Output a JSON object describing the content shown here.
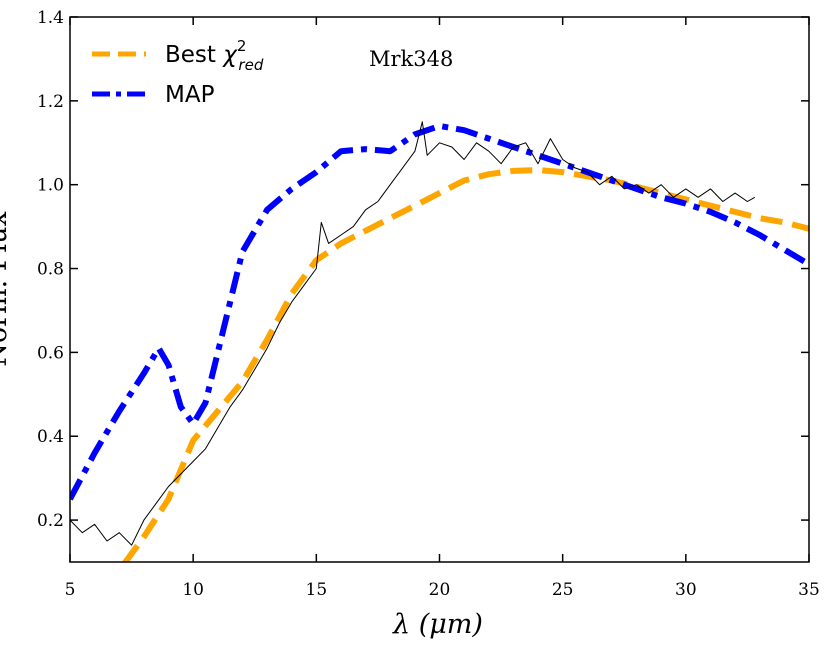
{
  "chart_data": {
    "type": "line",
    "title": "",
    "annotation": "Mrk348",
    "xlabel": "λ (μm)",
    "ylabel": "Norm. Flux",
    "xlim": [
      5,
      35
    ],
    "ylim": [
      0.1,
      1.4
    ],
    "xticks": [
      5,
      10,
      15,
      20,
      25,
      30,
      35
    ],
    "yticks": [
      0.2,
      0.4,
      0.6,
      0.8,
      1.0,
      1.2,
      1.4
    ],
    "legend_position": "top-left",
    "legend": [
      {
        "label": "Best χ²_red",
        "text_main": "Best ",
        "chi": "χ",
        "sup": "2",
        "sub": "red",
        "color": "#FFA500",
        "style": "dashed"
      },
      {
        "label": "MAP",
        "text_main": "MAP",
        "color": "#0000FF",
        "style": "dashdot"
      }
    ],
    "series": [
      {
        "name": "Best χ²_red",
        "color": "#FFA500",
        "style": "dashed",
        "x": [
          5.0,
          6.0,
          7.0,
          8.0,
          9.0,
          10.0,
          11.0,
          12.0,
          13.0,
          14.0,
          15.0,
          16.0,
          17.0,
          18.0,
          19.0,
          20.0,
          21.0,
          22.0,
          23.0,
          24.0,
          25.0,
          26.0,
          27.0,
          28.0,
          29.0,
          30.0,
          31.0,
          32.0,
          33.0,
          34.0,
          35.0
        ],
        "y": [
          0.02,
          0.05,
          0.08,
          0.16,
          0.25,
          0.39,
          0.46,
          0.53,
          0.63,
          0.74,
          0.82,
          0.86,
          0.89,
          0.92,
          0.95,
          0.98,
          1.01,
          1.025,
          1.033,
          1.035,
          1.03,
          1.02,
          1.01,
          0.995,
          0.98,
          0.965,
          0.95,
          0.935,
          0.92,
          0.91,
          0.895
        ]
      },
      {
        "name": "MAP",
        "color": "#0000FF",
        "style": "dashdot",
        "x": [
          5.0,
          6.0,
          7.0,
          8.0,
          8.6,
          9.0,
          9.5,
          10.0,
          10.5,
          11.0,
          11.5,
          12.0,
          13.0,
          14.0,
          15.0,
          16.0,
          17.0,
          18.0,
          19.0,
          20.0,
          21.0,
          22.0,
          23.0,
          24.0,
          25.0,
          26.0,
          27.0,
          28.0,
          29.0,
          30.0,
          31.0,
          32.0,
          33.0,
          34.0,
          35.0
        ],
        "y": [
          0.25,
          0.36,
          0.46,
          0.55,
          0.61,
          0.57,
          0.47,
          0.43,
          0.48,
          0.6,
          0.72,
          0.84,
          0.94,
          0.99,
          1.03,
          1.08,
          1.085,
          1.08,
          1.12,
          1.14,
          1.13,
          1.11,
          1.09,
          1.07,
          1.05,
          1.03,
          1.01,
          0.99,
          0.97,
          0.955,
          0.935,
          0.91,
          0.88,
          0.845,
          0.81
        ]
      },
      {
        "name": "",
        "color": "#000000",
        "style": "solid",
        "x": [
          5.0,
          5.5,
          6.0,
          6.5,
          7.0,
          7.5,
          8.0,
          8.5,
          9.0,
          9.5,
          10.0,
          10.5,
          11.0,
          11.5,
          12.0,
          12.5,
          13.0,
          13.5,
          14.0,
          14.5,
          15.0,
          15.2,
          15.5,
          16.0,
          16.5,
          17.0,
          17.5,
          18.0,
          18.5,
          19.0,
          19.3,
          19.5,
          20.0,
          20.5,
          21.0,
          21.5,
          22.0,
          22.5,
          23.0,
          23.5,
          24.0,
          24.5,
          25.0,
          25.5,
          26.0,
          26.5,
          27.0,
          27.5,
          28.0,
          28.5,
          29.0,
          29.5,
          30.0,
          30.5,
          31.0,
          31.5,
          32.0,
          32.5,
          32.8
        ],
        "y": [
          0.2,
          0.17,
          0.19,
          0.15,
          0.17,
          0.14,
          0.2,
          0.24,
          0.28,
          0.31,
          0.34,
          0.37,
          0.42,
          0.47,
          0.51,
          0.56,
          0.61,
          0.67,
          0.72,
          0.76,
          0.8,
          0.91,
          0.86,
          0.88,
          0.9,
          0.94,
          0.96,
          1.0,
          1.04,
          1.08,
          1.15,
          1.07,
          1.1,
          1.09,
          1.06,
          1.1,
          1.08,
          1.05,
          1.09,
          1.1,
          1.05,
          1.11,
          1.06,
          1.04,
          1.03,
          1.0,
          1.02,
          0.99,
          1.0,
          0.98,
          1.0,
          0.97,
          0.99,
          0.97,
          0.99,
          0.96,
          0.98,
          0.96,
          0.97
        ]
      }
    ]
  }
}
